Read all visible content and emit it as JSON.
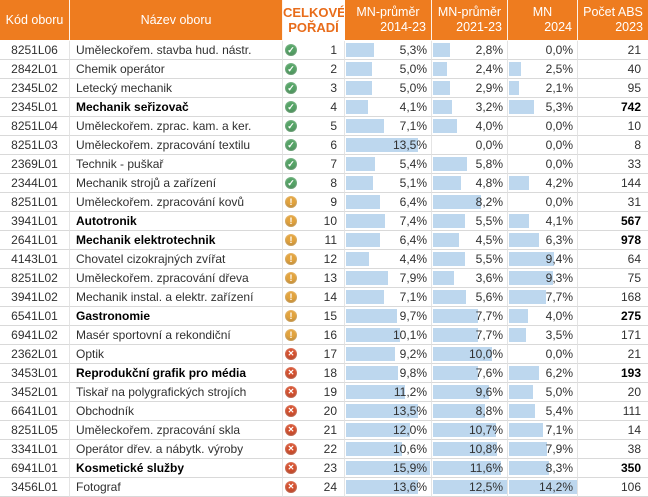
{
  "colors": {
    "header_bg": "#ee7c1f",
    "header_text": "#ffffff",
    "rank_header_text": "#e86c1a",
    "data_bar": "#bdd7ee",
    "status_ok": "#55a366",
    "status_warn": "#e2a33d",
    "status_bad": "#d4502e",
    "row_border": "#d9d9d9",
    "col_border": "#e4e4e4",
    "body_text": "#303030",
    "bold_text": "#000000"
  },
  "icons": {
    "ok": "green-circle-check",
    "warn": "amber-circle-exclamation",
    "bad": "red-circle-cross"
  },
  "chart_data": {
    "type": "table",
    "header": {
      "code": "Kód oboru",
      "name": "Název oboru",
      "rank_line1": "CELKOVÉ",
      "rank_line2": "POŘADÍ",
      "mn14_line1": "MN-průměr",
      "mn14_line2": "2014-23",
      "mn21_line1": "MN-průměr",
      "mn21_line2": "2021-23",
      "mn24_line1": "MN",
      "mn24_line2": "2024",
      "abs_line1": "Počet ABS",
      "abs_line2": "2023"
    },
    "percent_decimal_separator": ",",
    "rows": [
      {
        "code": "8251L06",
        "name": "Uměleckořem. stavba hud. nástr.",
        "bold": false,
        "status": "ok",
        "rank": 1,
        "mn14": 5.3,
        "mn21": 2.8,
        "mn24": 0.0,
        "abs": 21
      },
      {
        "code": "2842L01",
        "name": "Chemik operátor",
        "bold": false,
        "status": "ok",
        "rank": 2,
        "mn14": 5.0,
        "mn21": 2.4,
        "mn24": 2.5,
        "abs": 40
      },
      {
        "code": "2345L02",
        "name": "Letecký mechanik",
        "bold": false,
        "status": "ok",
        "rank": 3,
        "mn14": 5.0,
        "mn21": 2.9,
        "mn24": 2.1,
        "abs": 95
      },
      {
        "code": "2345L01",
        "name": "Mechanik seřizovač",
        "bold": true,
        "status": "ok",
        "rank": 4,
        "mn14": 4.1,
        "mn21": 3.2,
        "mn24": 5.3,
        "abs": 742
      },
      {
        "code": "8251L04",
        "name": "Uměleckořem. zprac. kam. a ker.",
        "bold": false,
        "status": "ok",
        "rank": 5,
        "mn14": 7.1,
        "mn21": 4.0,
        "mn24": 0.0,
        "abs": 10
      },
      {
        "code": "8251L03",
        "name": "Uměleckořem. zpracování textilu",
        "bold": false,
        "status": "ok",
        "rank": 6,
        "mn14": 13.5,
        "mn21": 0.0,
        "mn24": 0.0,
        "abs": 8
      },
      {
        "code": "2369L01",
        "name": "Technik - puškař",
        "bold": false,
        "status": "ok",
        "rank": 7,
        "mn14": 5.4,
        "mn21": 5.8,
        "mn24": 0.0,
        "abs": 33
      },
      {
        "code": "2344L01",
        "name": "Mechanik strojů a zařízení",
        "bold": false,
        "status": "ok",
        "rank": 8,
        "mn14": 5.1,
        "mn21": 4.8,
        "mn24": 4.2,
        "abs": 144
      },
      {
        "code": "8251L01",
        "name": "Uměleckořem. zpracování kovů",
        "bold": false,
        "status": "warn",
        "rank": 9,
        "mn14": 6.4,
        "mn21": 8.2,
        "mn24": 0.0,
        "abs": 31
      },
      {
        "code": "3941L01",
        "name": "Autotronik",
        "bold": true,
        "status": "warn",
        "rank": 10,
        "mn14": 7.4,
        "mn21": 5.5,
        "mn24": 4.1,
        "abs": 567
      },
      {
        "code": "2641L01",
        "name": "Mechanik elektrotechnik",
        "bold": true,
        "status": "warn",
        "rank": 11,
        "mn14": 6.4,
        "mn21": 4.5,
        "mn24": 6.3,
        "abs": 978
      },
      {
        "code": "4143L01",
        "name": "Chovatel cizokrajných zvířat",
        "bold": false,
        "status": "warn",
        "rank": 12,
        "mn14": 4.4,
        "mn21": 5.5,
        "mn24": 9.4,
        "abs": 64
      },
      {
        "code": "8251L02",
        "name": "Uměleckořem. zpracování dřeva",
        "bold": false,
        "status": "warn",
        "rank": 13,
        "mn14": 7.9,
        "mn21": 3.6,
        "mn24": 9.3,
        "abs": 75
      },
      {
        "code": "3941L02",
        "name": "Mechanik instal. a elektr. zařízení",
        "bold": false,
        "status": "warn",
        "rank": 14,
        "mn14": 7.1,
        "mn21": 5.6,
        "mn24": 7.7,
        "abs": 168
      },
      {
        "code": "6541L01",
        "name": "Gastronomie",
        "bold": true,
        "status": "warn",
        "rank": 15,
        "mn14": 9.7,
        "mn21": 7.7,
        "mn24": 4.0,
        "abs": 275
      },
      {
        "code": "6941L02",
        "name": "Masér sportovní a rekondiční",
        "bold": false,
        "status": "warn",
        "rank": 16,
        "mn14": 10.1,
        "mn21": 7.7,
        "mn24": 3.5,
        "abs": 171
      },
      {
        "code": "2362L01",
        "name": "Optik",
        "bold": false,
        "status": "bad",
        "rank": 17,
        "mn14": 9.2,
        "mn21": 10.0,
        "mn24": 0.0,
        "abs": 21
      },
      {
        "code": "3453L01",
        "name": "Reprodukční grafik pro média",
        "bold": true,
        "status": "bad",
        "rank": 18,
        "mn14": 9.8,
        "mn21": 7.6,
        "mn24": 6.2,
        "abs": 193
      },
      {
        "code": "3452L01",
        "name": "Tiskař na polygrafických strojích",
        "bold": false,
        "status": "bad",
        "rank": 19,
        "mn14": 11.2,
        "mn21": 9.6,
        "mn24": 5.0,
        "abs": 20
      },
      {
        "code": "6641L01",
        "name": "Obchodník",
        "bold": false,
        "status": "bad",
        "rank": 20,
        "mn14": 13.5,
        "mn21": 8.8,
        "mn24": 5.4,
        "abs": 111
      },
      {
        "code": "8251L05",
        "name": "Uměleckořem. zpracování skla",
        "bold": false,
        "status": "bad",
        "rank": 21,
        "mn14": 12.0,
        "mn21": 10.7,
        "mn24": 7.1,
        "abs": 14
      },
      {
        "code": "3341L01",
        "name": "Operátor dřev. a nábytk. výroby",
        "bold": false,
        "status": "bad",
        "rank": 22,
        "mn14": 10.6,
        "mn21": 10.8,
        "mn24": 7.9,
        "abs": 38
      },
      {
        "code": "6941L01",
        "name": "Kosmetické služby",
        "bold": true,
        "status": "bad",
        "rank": 23,
        "mn14": 15.9,
        "mn21": 11.6,
        "mn24": 8.3,
        "abs": 350
      },
      {
        "code": "3456L01",
        "name": "Fotograf",
        "bold": false,
        "status": "bad",
        "rank": 24,
        "mn14": 13.6,
        "mn21": 12.5,
        "mn24": 14.2,
        "abs": 106
      }
    ]
  }
}
